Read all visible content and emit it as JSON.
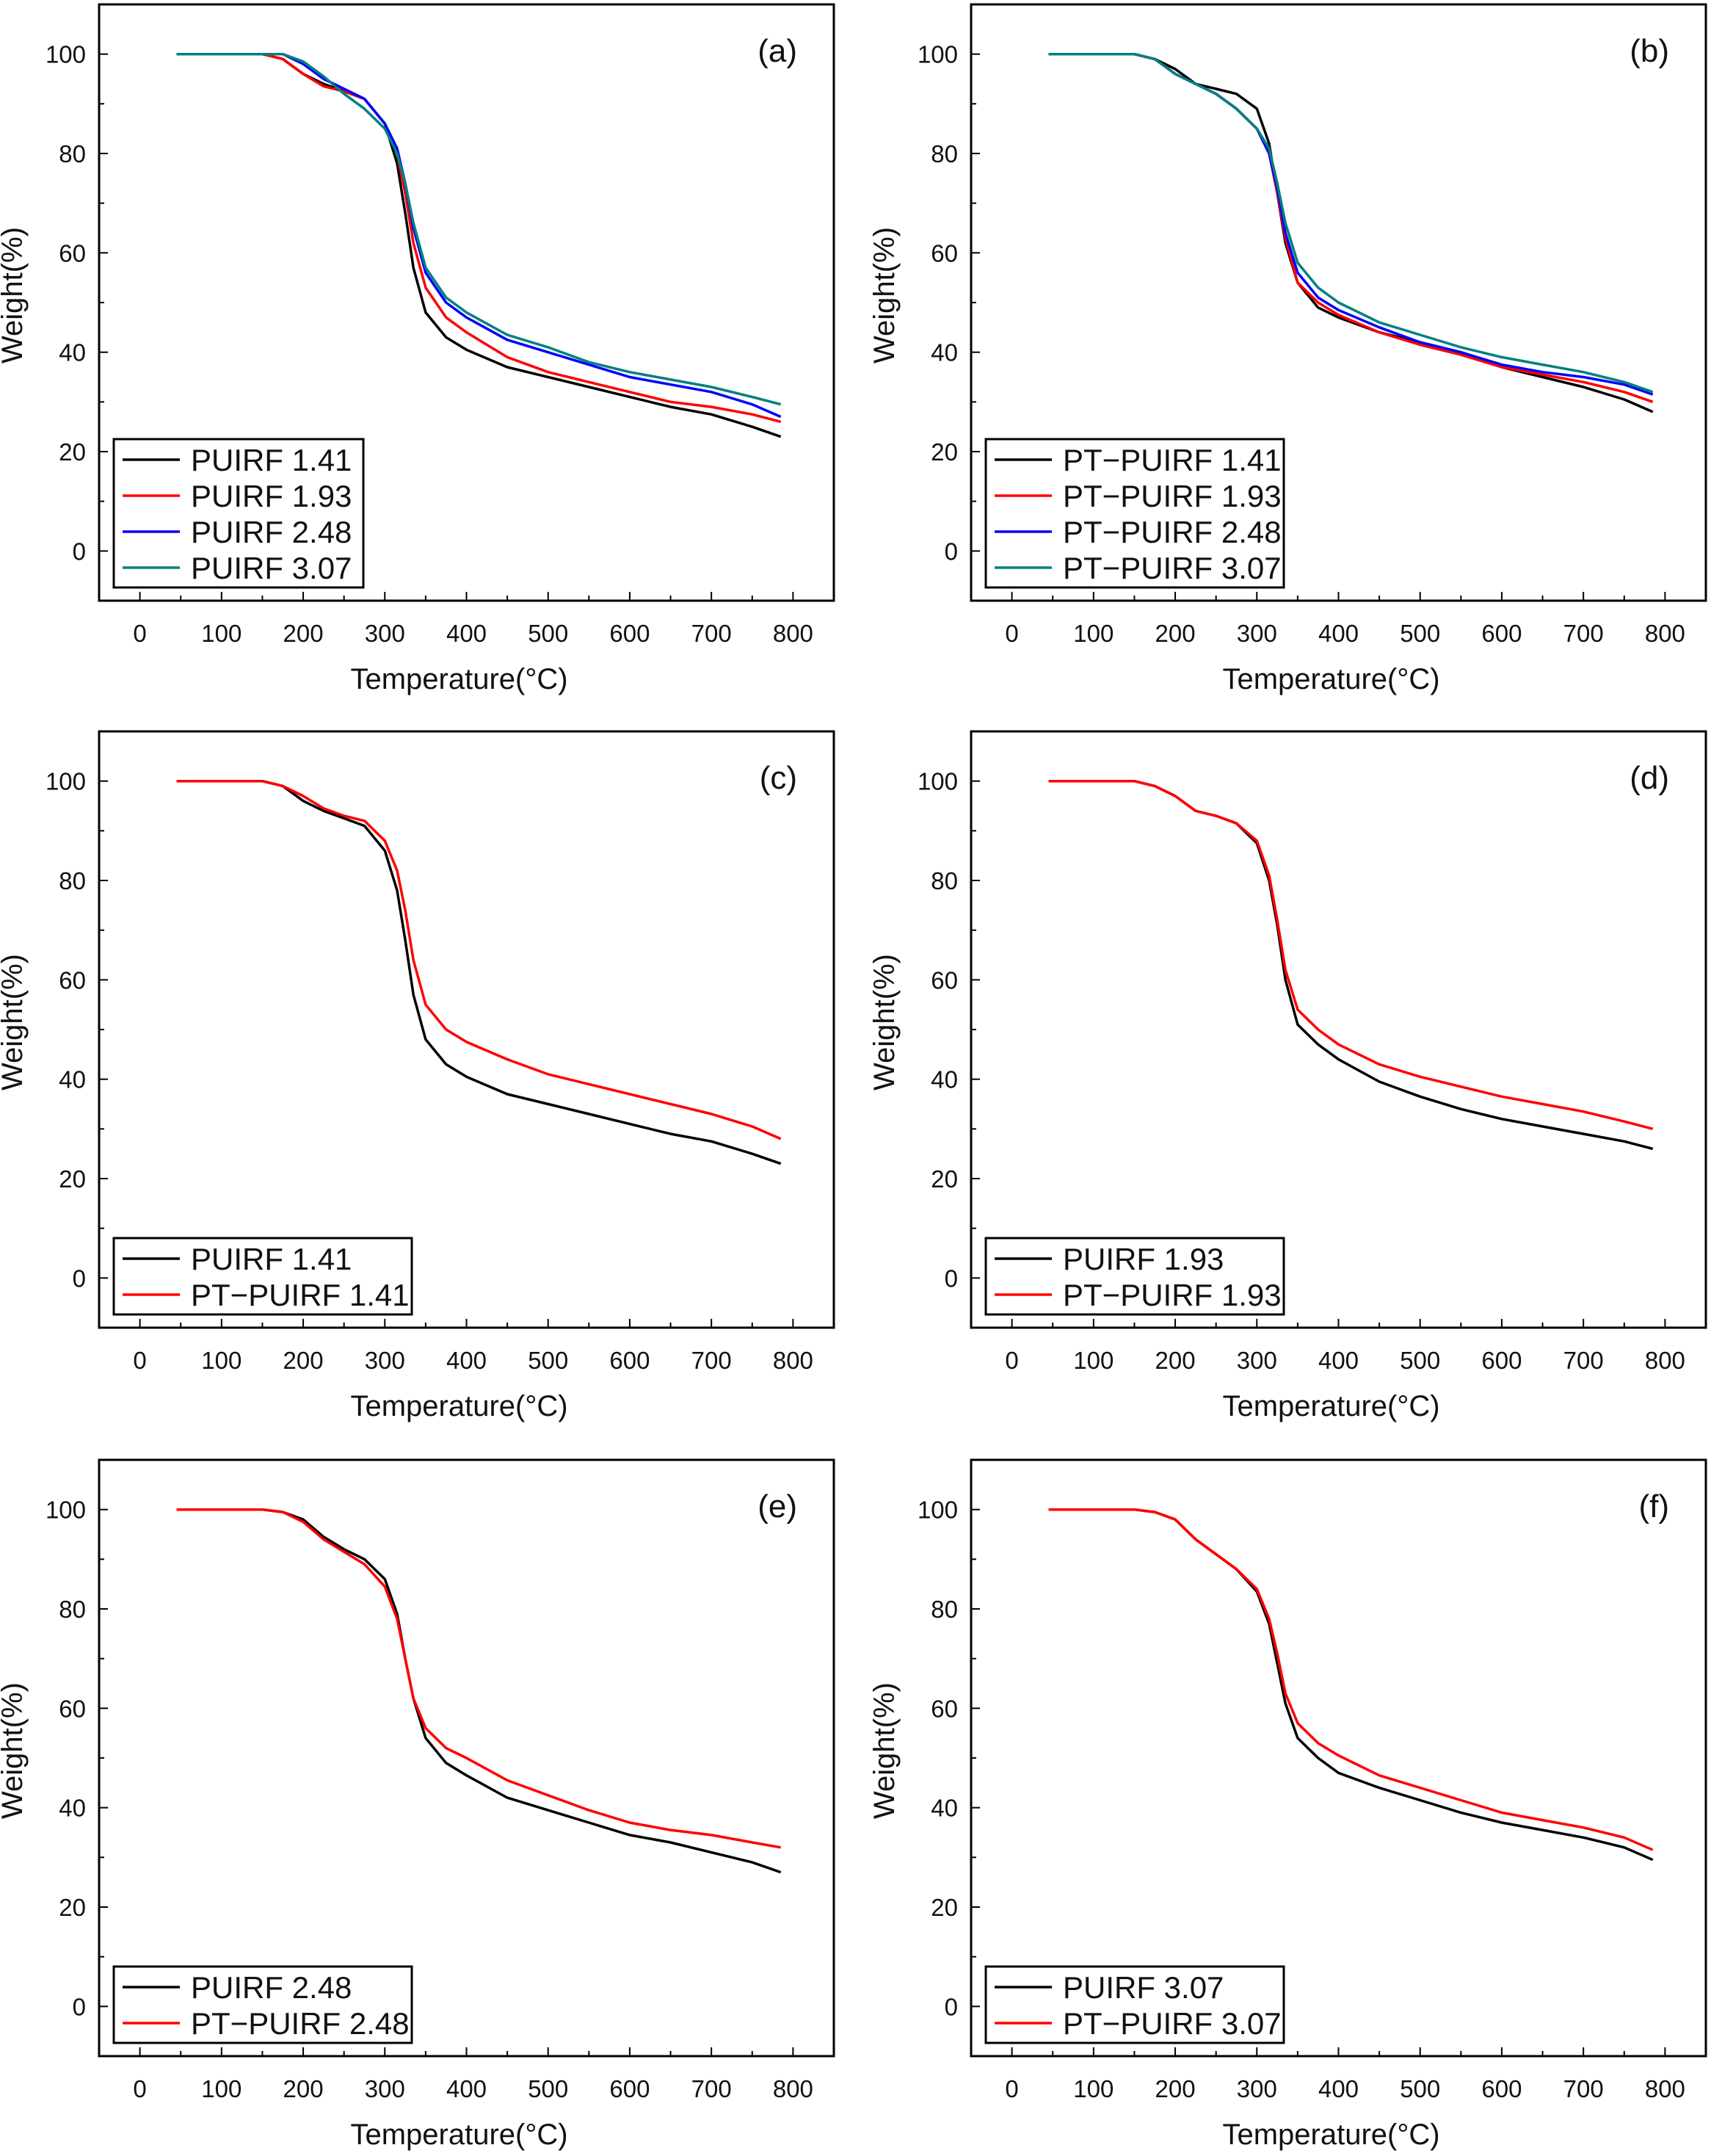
{
  "chart_data": {
    "type": "line",
    "temperatures": [
      45,
      100,
      150,
      175,
      200,
      225,
      250,
      275,
      300,
      315,
      325,
      335,
      350,
      375,
      400,
      450,
      500,
      550,
      600,
      650,
      700,
      750,
      785
    ],
    "panels": [
      {
        "label": "(a)",
        "xlabel": "Temperature(°C)",
        "ylabel": "Weight(%)",
        "xlim": [
          -50,
          850
        ],
        "ylim": [
          -10,
          110
        ],
        "xticks": [
          0,
          100,
          200,
          300,
          400,
          500,
          600,
          700,
          800
        ],
        "yticks": [
          0,
          20,
          40,
          60,
          80,
          100
        ],
        "series": [
          {
            "name": "PUIRF 1.41",
            "color": "#000000",
            "values": [
              100,
              100,
              100,
              99,
              96,
              94,
              92.5,
              91,
              86,
              78,
              68,
              57,
              48,
              43,
              40.5,
              37,
              35,
              33,
              31,
              29,
              27.5,
              25,
              23
            ]
          },
          {
            "name": "PUIRF 1.93",
            "color": "#ff0000",
            "values": [
              100,
              100,
              100,
              99,
              96,
              93.5,
              92.5,
              91,
              86,
              80,
              72,
              62,
              53,
              47,
              44,
              39,
              36,
              34,
              32,
              30,
              29,
              27.5,
              26
            ]
          },
          {
            "name": "PUIRF 2.48",
            "color": "#0000ff",
            "values": [
              100,
              100,
              100,
              100,
              98,
              95,
              93,
              91,
              86,
              81,
              74,
              65,
              56,
              50,
              47,
              42.5,
              40,
              37.5,
              35,
              33.5,
              32,
              29.5,
              27
            ]
          },
          {
            "name": "PUIRF 3.07",
            "color": "#008080",
            "values": [
              100,
              100,
              100,
              100,
              98.5,
              95.5,
              92,
              89,
              85,
              80,
              74,
              66,
              57,
              51,
              48,
              43.5,
              41,
              38,
              36,
              34.5,
              33,
              31,
              29.5
            ]
          }
        ]
      },
      {
        "label": "(b)",
        "xlabel": "Temperature(°C)",
        "ylabel": "Weight(%)",
        "xlim": [
          -50,
          850
        ],
        "ylim": [
          -10,
          110
        ],
        "xticks": [
          0,
          100,
          200,
          300,
          400,
          500,
          600,
          700,
          800
        ],
        "yticks": [
          0,
          20,
          40,
          60,
          80,
          100
        ],
        "series": [
          {
            "name": "PT−PUIRF 1.41",
            "color": "#000000",
            "values": [
              100,
              100,
              100,
              99,
              97,
              94,
              93,
              92,
              89,
              82,
              72,
              62,
              54,
              49,
              47,
              44,
              42,
              40,
              37,
              35,
              33,
              30.5,
              28
            ]
          },
          {
            "name": "PT−PUIRF 1.93",
            "color": "#ff0000",
            "values": [
              100,
              100,
              100,
              99,
              96,
              94,
              92,
              89,
              85,
              80,
              72,
              63,
              54,
              50,
              47.5,
              44,
              41.5,
              39.5,
              37,
              35.5,
              34,
              32,
              30
            ]
          },
          {
            "name": "PT−PUIRF 2.48",
            "color": "#0000ff",
            "values": [
              100,
              100,
              100,
              99,
              96,
              94,
              92,
              89,
              85,
              80,
              73,
              64,
              56,
              51,
              48.5,
              45,
              42,
              40,
              37.5,
              36,
              35,
              33.5,
              31.5
            ]
          },
          {
            "name": "PT−PUIRF 3.07",
            "color": "#008080",
            "values": [
              100,
              100,
              100,
              99,
              96,
              94,
              92,
              89,
              85,
              81,
              74,
              66,
              58,
              53,
              50,
              46,
              43.5,
              41,
              39,
              37.5,
              36,
              34,
              32
            ]
          }
        ]
      },
      {
        "label": "(c)",
        "xlabel": "Temperature(°C)",
        "ylabel": "Weight(%)",
        "xlim": [
          -50,
          850
        ],
        "ylim": [
          -10,
          110
        ],
        "xticks": [
          0,
          100,
          200,
          300,
          400,
          500,
          600,
          700,
          800
        ],
        "yticks": [
          0,
          20,
          40,
          60,
          80,
          100
        ],
        "series": [
          {
            "name": "PUIRF 1.41",
            "color": "#000000",
            "values": [
              100,
              100,
              100,
              99,
              96,
              94,
              92.5,
              91,
              86,
              78,
              68,
              57,
              48,
              43,
              40.5,
              37,
              35,
              33,
              31,
              29,
              27.5,
              25,
              23
            ]
          },
          {
            "name": "PT−PUIRF 1.41",
            "color": "#ff0000",
            "values": [
              100,
              100,
              100,
              99,
              97,
              94.5,
              93,
              92,
              88,
              82,
              74,
              64,
              55,
              50,
              47.5,
              44,
              41,
              39,
              37,
              35,
              33,
              30.5,
              28
            ]
          }
        ]
      },
      {
        "label": "(d)",
        "xlabel": "Temperature(°C)",
        "ylabel": "Weight(%)",
        "xlim": [
          -50,
          850
        ],
        "ylim": [
          -10,
          110
        ],
        "xticks": [
          0,
          100,
          200,
          300,
          400,
          500,
          600,
          700,
          800
        ],
        "yticks": [
          0,
          20,
          40,
          60,
          80,
          100
        ],
        "series": [
          {
            "name": "PUIRF 1.93",
            "color": "#000000",
            "values": [
              100,
              100,
              100,
              99,
              97,
              94,
              93,
              91.5,
              87.5,
              80,
              71,
              60,
              51,
              47,
              44,
              39.5,
              36.5,
              34,
              32,
              30.5,
              29,
              27.5,
              26
            ]
          },
          {
            "name": "PT−PUIRF 1.93",
            "color": "#ff0000",
            "values": [
              100,
              100,
              100,
              99,
              97,
              94,
              93,
              91.5,
              88,
              81,
              72,
              62,
              54,
              50,
              47,
              43,
              40.5,
              38.5,
              36.5,
              35,
              33.5,
              31.5,
              30
            ]
          }
        ]
      },
      {
        "label": "(e)",
        "xlabel": "Temperature(°C)",
        "ylabel": "Weight(%)",
        "xlim": [
          -50,
          850
        ],
        "ylim": [
          -10,
          110
        ],
        "xticks": [
          0,
          100,
          200,
          300,
          400,
          500,
          600,
          700,
          800
        ],
        "yticks": [
          0,
          20,
          40,
          60,
          80,
          100
        ],
        "series": [
          {
            "name": "PUIRF 2.48",
            "color": "#000000",
            "values": [
              100,
              100,
              100,
              99.5,
              98,
              94.5,
              92,
              90,
              86,
              79,
              70,
              62,
              54,
              49,
              46.5,
              42,
              39.5,
              37,
              34.5,
              33,
              31,
              29,
              27
            ]
          },
          {
            "name": "PT−PUIRF 2.48",
            "color": "#ff0000",
            "values": [
              100,
              100,
              100,
              99.5,
              97.5,
              94,
              91.5,
              89,
              84.5,
              78,
              70,
              62,
              56,
              52,
              50,
              45.5,
              42.5,
              39.5,
              37,
              35.5,
              34.5,
              33,
              32
            ]
          }
        ]
      },
      {
        "label": "(f)",
        "xlabel": "Temperature(°C)",
        "ylabel": "Weight(%)",
        "xlim": [
          -50,
          850
        ],
        "ylim": [
          -10,
          110
        ],
        "xticks": [
          0,
          100,
          200,
          300,
          400,
          500,
          600,
          700,
          800
        ],
        "yticks": [
          0,
          20,
          40,
          60,
          80,
          100
        ],
        "series": [
          {
            "name": "PUIRF 3.07",
            "color": "#000000",
            "values": [
              100,
              100,
              100,
              99.5,
              98,
              94,
              91,
              88,
              83.5,
              77,
              69,
              61,
              54,
              50,
              47,
              44,
              41.5,
              39,
              37,
              35.5,
              34,
              32,
              29.5
            ]
          },
          {
            "name": "PT−PUIRF 3.07",
            "color": "#ff0000",
            "values": [
              100,
              100,
              100,
              99.5,
              98,
              94,
              91,
              88,
              84,
              78,
              71,
              63,
              57,
              53,
              50.5,
              46.5,
              44,
              41.5,
              39,
              37.5,
              36,
              34,
              31.5
            ]
          }
        ]
      }
    ]
  }
}
